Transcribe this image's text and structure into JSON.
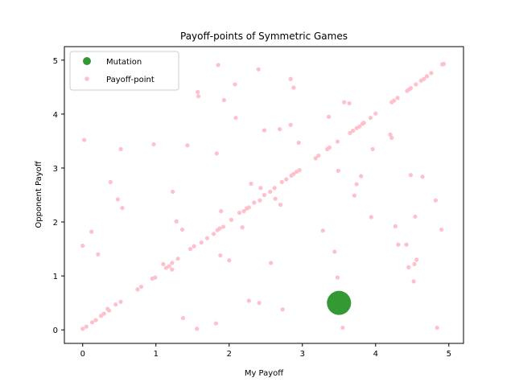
{
  "chart_data": {
    "type": "scatter",
    "title": "Payoff-points of Symmetric Games",
    "xlabel": "My Payoff",
    "ylabel": "Opponent Payoff",
    "xlim": [
      -0.25,
      5.2
    ],
    "ylim": [
      -0.25,
      5.25
    ],
    "xticks": [
      "0",
      "1",
      "2",
      "3",
      "4",
      "5"
    ],
    "yticks": [
      "0",
      "1",
      "2",
      "3",
      "4",
      "5"
    ],
    "grid": false,
    "legend_position": "top-left",
    "series": [
      {
        "name": "Mutation",
        "color": "#339933",
        "marker": "large-circle",
        "points": [
          [
            3.5,
            0.5
          ]
        ]
      },
      {
        "name": "Payoff-point",
        "color": "#ffc0cb",
        "marker": "small-circle",
        "points": [
          [
            0.0,
            0.02
          ],
          [
            0.05,
            0.06
          ],
          [
            0.13,
            0.14
          ],
          [
            0.18,
            0.18
          ],
          [
            0.25,
            0.26
          ],
          [
            0.29,
            0.3
          ],
          [
            0.34,
            0.39
          ],
          [
            0.36,
            0.36
          ],
          [
            0.45,
            0.47
          ],
          [
            0.52,
            0.52
          ],
          [
            0.75,
            0.75
          ],
          [
            0.8,
            0.8
          ],
          [
            0.95,
            0.95
          ],
          [
            0.99,
            0.97
          ],
          [
            1.1,
            1.22
          ],
          [
            1.14,
            1.15
          ],
          [
            1.18,
            1.18
          ],
          [
            1.22,
            1.12
          ],
          [
            1.22,
            1.24
          ],
          [
            1.3,
            1.32
          ],
          [
            1.36,
            1.86
          ],
          [
            1.47,
            1.5
          ],
          [
            1.52,
            1.55
          ],
          [
            1.62,
            1.62
          ],
          [
            1.7,
            1.7
          ],
          [
            1.79,
            1.78
          ],
          [
            1.84,
            1.85
          ],
          [
            1.87,
            1.88
          ],
          [
            1.92,
            1.91
          ],
          [
            2.03,
            2.04
          ],
          [
            2.14,
            2.17
          ],
          [
            2.2,
            2.2
          ],
          [
            2.24,
            2.25
          ],
          [
            2.27,
            2.27
          ],
          [
            2.34,
            2.36
          ],
          [
            2.42,
            2.4
          ],
          [
            2.48,
            2.5
          ],
          [
            2.56,
            2.56
          ],
          [
            2.62,
            2.63
          ],
          [
            2.72,
            2.74
          ],
          [
            2.78,
            2.79
          ],
          [
            2.85,
            2.86
          ],
          [
            2.88,
            2.89
          ],
          [
            2.92,
            2.93
          ],
          [
            2.96,
            2.96
          ],
          [
            3.18,
            3.18
          ],
          [
            3.22,
            3.23
          ],
          [
            3.34,
            3.35
          ],
          [
            3.37,
            3.38
          ],
          [
            3.48,
            3.49
          ],
          [
            3.65,
            3.65
          ],
          [
            3.69,
            3.69
          ],
          [
            3.74,
            3.74
          ],
          [
            3.78,
            3.77
          ],
          [
            3.82,
            3.82
          ],
          [
            3.84,
            3.84
          ],
          [
            3.93,
            3.93
          ],
          [
            4.0,
            4.01
          ],
          [
            4.22,
            4.22
          ],
          [
            4.25,
            4.25
          ],
          [
            4.3,
            4.3
          ],
          [
            4.43,
            4.43
          ],
          [
            4.46,
            4.46
          ],
          [
            4.48,
            4.48
          ],
          [
            4.55,
            4.55
          ],
          [
            4.62,
            4.62
          ],
          [
            4.66,
            4.65
          ],
          [
            4.7,
            4.7
          ],
          [
            4.76,
            4.76
          ],
          [
            4.91,
            4.92
          ],
          [
            4.93,
            4.93
          ],
          [
            0.0,
            1.56
          ],
          [
            0.02,
            3.52
          ],
          [
            0.12,
            1.82
          ],
          [
            0.21,
            1.4
          ],
          [
            0.38,
            2.74
          ],
          [
            0.48,
            2.42
          ],
          [
            0.52,
            3.35
          ],
          [
            0.54,
            2.26
          ],
          [
            0.97,
            3.44
          ],
          [
            1.23,
            2.56
          ],
          [
            1.28,
            2.01
          ],
          [
            1.37,
            0.22
          ],
          [
            1.43,
            3.42
          ],
          [
            1.57,
            4.41
          ],
          [
            1.58,
            4.33
          ],
          [
            1.56,
            0.02
          ],
          [
            1.82,
            0.12
          ],
          [
            1.83,
            3.27
          ],
          [
            1.85,
            4.91
          ],
          [
            1.88,
            1.38
          ],
          [
            1.89,
            2.2
          ],
          [
            1.93,
            4.26
          ],
          [
            2.0,
            1.29
          ],
          [
            2.08,
            4.55
          ],
          [
            2.09,
            3.93
          ],
          [
            2.18,
            1.9
          ],
          [
            2.27,
            0.54
          ],
          [
            2.3,
            2.71
          ],
          [
            2.41,
            0.5
          ],
          [
            2.4,
            4.83
          ],
          [
            2.43,
            2.63
          ],
          [
            2.48,
            3.7
          ],
          [
            2.57,
            1.24
          ],
          [
            2.63,
            2.43
          ],
          [
            2.69,
            3.72
          ],
          [
            2.7,
            2.32
          ],
          [
            2.73,
            0.38
          ],
          [
            2.84,
            4.65
          ],
          [
            2.84,
            3.8
          ],
          [
            2.88,
            4.49
          ],
          [
            2.95,
            3.47
          ],
          [
            3.28,
            1.84
          ],
          [
            3.36,
            0.52
          ],
          [
            3.36,
            3.95
          ],
          [
            3.44,
            1.45
          ],
          [
            3.48,
            0.97
          ],
          [
            3.49,
            2.95
          ],
          [
            3.55,
            0.04
          ],
          [
            3.57,
            4.22
          ],
          [
            3.64,
            4.2
          ],
          [
            3.71,
            2.49
          ],
          [
            3.74,
            2.7
          ],
          [
            3.8,
            2.85
          ],
          [
            3.94,
            2.09
          ],
          [
            3.96,
            3.35
          ],
          [
            4.2,
            3.62
          ],
          [
            4.22,
            3.56
          ],
          [
            4.27,
            1.92
          ],
          [
            4.31,
            1.58
          ],
          [
            4.42,
            1.58
          ],
          [
            4.45,
            1.16
          ],
          [
            4.48,
            2.87
          ],
          [
            4.52,
            0.9
          ],
          [
            4.53,
            1.22
          ],
          [
            4.54,
            2.1
          ],
          [
            4.56,
            1.3
          ],
          [
            4.64,
            2.84
          ],
          [
            4.82,
            2.4
          ],
          [
            4.84,
            0.04
          ],
          [
            4.9,
            1.86
          ]
        ]
      }
    ]
  }
}
